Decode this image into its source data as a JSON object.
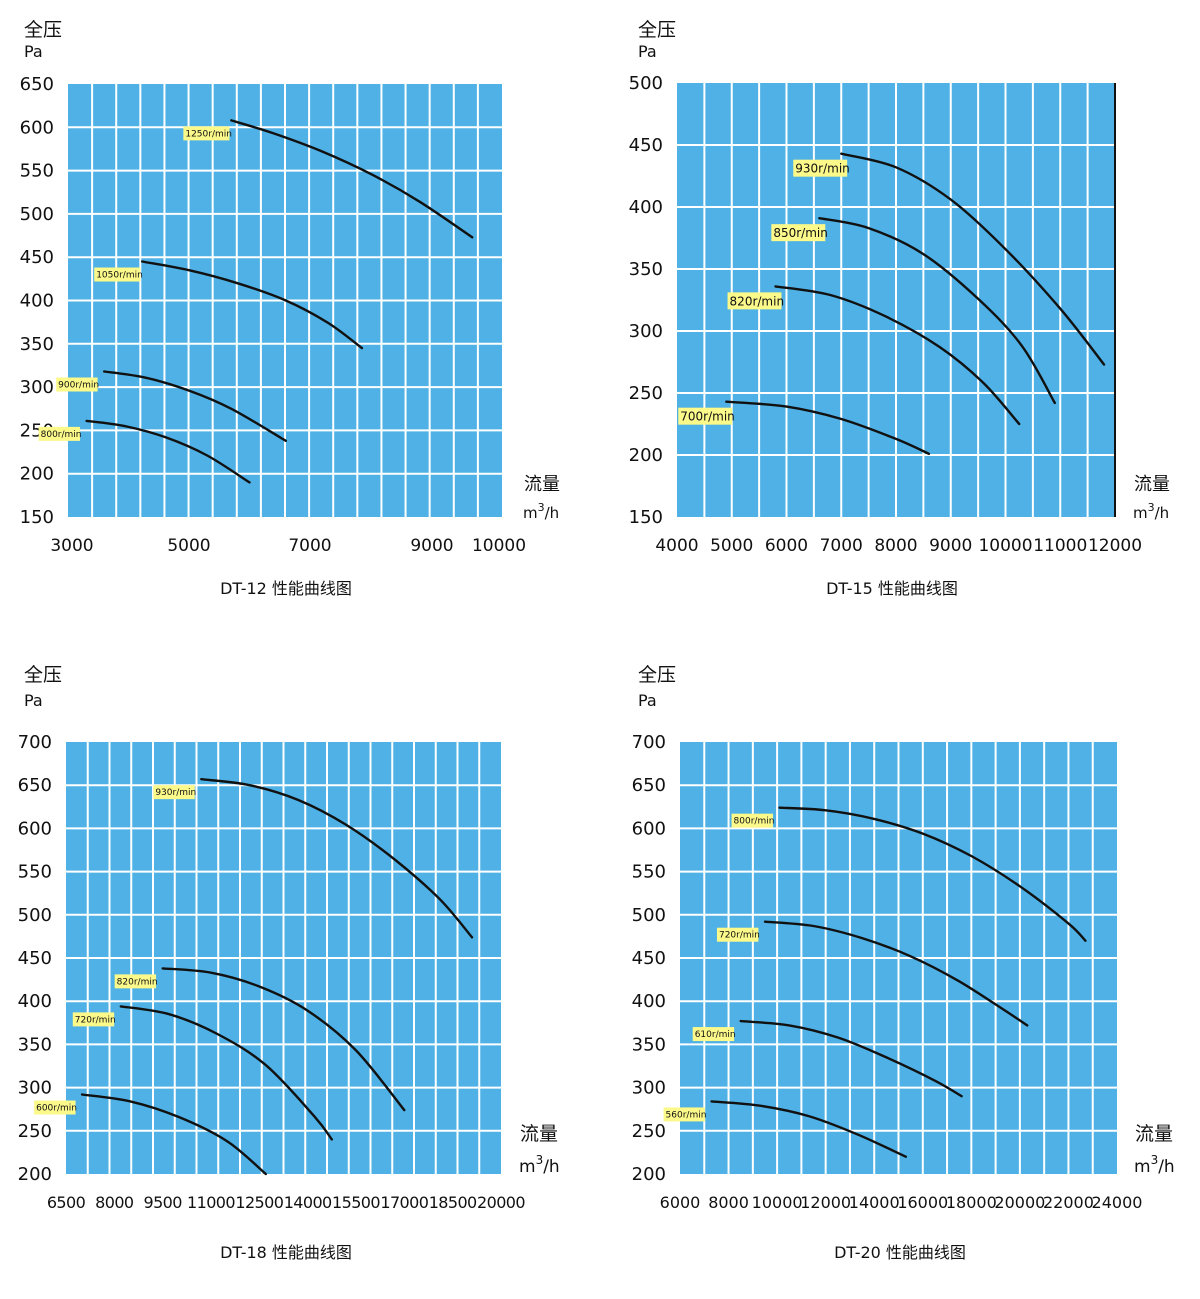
{
  "page": {
    "background": "#ffffff",
    "plot_background": "#4fb1e5",
    "grid_color": "#ffffff",
    "curve_color": "#111111",
    "label_background": "#fbf98a"
  },
  "chart_data": [
    {
      "type": "line",
      "caption": "DT-12 性能曲线图",
      "y_title": "全压",
      "y_unit": "Pa",
      "x_title": "流量",
      "x_unit": "m³/h",
      "x_unit_base": "m",
      "x_unit_sup": "3",
      "x_unit_tail": "/h",
      "x_ticks": [
        "3000",
        "5000",
        "7000",
        "9000",
        "10000"
      ],
      "y_ticks": [
        "150",
        "200",
        "250",
        "300",
        "350",
        "400",
        "450",
        "500",
        "550",
        "600",
        "650"
      ],
      "ylim": [
        150,
        650
      ],
      "grid": true,
      "series": [
        {
          "name": "1250r/min",
          "x": [
            5700,
            6400,
            7200,
            8000,
            8800,
            9600
          ],
          "y": [
            608,
            593,
            572,
            546,
            514,
            473
          ]
        },
        {
          "name": "1050r/min",
          "x": [
            4200,
            5000,
            5800,
            6600,
            7300,
            7850
          ],
          "y": [
            445,
            435,
            420,
            400,
            374,
            345
          ]
        },
        {
          "name": "900r/min",
          "x": [
            3550,
            4250,
            5000,
            5700,
            6600
          ],
          "y": [
            318,
            311,
            296,
            275,
            238
          ]
        },
        {
          "name": "800r/min",
          "x": [
            3250,
            3900,
            4600,
            5300,
            6000
          ],
          "y": [
            261,
            255,
            242,
            221,
            190
          ]
        }
      ]
    },
    {
      "type": "line",
      "caption": "DT-15 性能曲线图",
      "y_title": "全压",
      "y_unit": "Pa",
      "x_title": "流量",
      "x_unit": "m³/h",
      "x_unit_base": "m",
      "x_unit_sup": "3",
      "x_unit_tail": "/h",
      "x_ticks": [
        "4000",
        "5000",
        "6000",
        "7000",
        "8000",
        "9000",
        "10000",
        "11000",
        "12000"
      ],
      "y_ticks": [
        "150",
        "200",
        "250",
        "300",
        "350",
        "400",
        "450",
        "500"
      ],
      "xlim": [
        4000,
        12000
      ],
      "ylim": [
        150,
        500
      ],
      "grid": true,
      "series": [
        {
          "name": "930r/min",
          "x": [
            7000,
            8000,
            9000,
            10000,
            11000,
            11800
          ],
          "y": [
            443,
            432,
            406,
            366,
            318,
            273
          ]
        },
        {
          "name": "850r/min",
          "x": [
            6600,
            7500,
            8500,
            9500,
            10300,
            10900
          ],
          "y": [
            391,
            383,
            362,
            326,
            288,
            242
          ]
        },
        {
          "name": "820r/min",
          "x": [
            5800,
            6800,
            7800,
            8800,
            9600,
            10250
          ],
          "y": [
            336,
            329,
            312,
            287,
            258,
            225
          ]
        },
        {
          "name": "700r/min",
          "x": [
            4900,
            6000,
            7000,
            8000,
            8600
          ],
          "y": [
            243,
            239,
            229,
            213,
            201
          ]
        }
      ]
    },
    {
      "type": "line",
      "caption": "DT-18 性能曲线图",
      "y_title": "全压",
      "y_unit": "Pa",
      "x_title": "流量",
      "x_unit": "m³/h",
      "x_unit_base": "m",
      "x_unit_sup": "3",
      "x_unit_tail": "/h",
      "x_ticks": [
        "6500",
        "8000",
        "9500",
        "11000",
        "12500",
        "14000",
        "15500",
        "17000",
        "18500",
        "20000"
      ],
      "y_ticks": [
        "200",
        "250",
        "300",
        "350",
        "400",
        "450",
        "500",
        "550",
        "600",
        "650",
        "700"
      ],
      "ylim": [
        200,
        700
      ],
      "grid": true,
      "series": [
        {
          "name": "930r/min",
          "x": [
            10700,
            12200,
            13700,
            15200,
            16700,
            18100,
            19100
          ],
          "y": [
            657,
            650,
            633,
            604,
            564,
            518,
            474
          ]
        },
        {
          "name": "820r/min",
          "x": [
            9500,
            11000,
            12500,
            14000,
            15500,
            17000
          ],
          "y": [
            438,
            433,
            417,
            389,
            343,
            274
          ]
        },
        {
          "name": "720r/min",
          "x": [
            8200,
            9700,
            11200,
            12700,
            14200,
            14750
          ],
          "y": [
            394,
            385,
            362,
            326,
            267,
            240
          ]
        },
        {
          "name": "600r/min",
          "x": [
            7000,
            8500,
            10000,
            11500,
            12700
          ],
          "y": [
            292,
            284,
            266,
            238,
            200
          ]
        }
      ]
    },
    {
      "type": "line",
      "caption": "DT-20 性能曲线图",
      "y_title": "全压",
      "y_unit": "Pa",
      "x_title": "流量",
      "x_unit": "m³/h",
      "x_unit_base": "m",
      "x_unit_sup": "3",
      "x_unit_tail": "/h",
      "x_ticks": [
        "6000",
        "8000",
        "10000",
        "12000",
        "14000",
        "16000",
        "18000",
        "20000",
        "22000",
        "24000"
      ],
      "y_ticks": [
        "200",
        "250",
        "300",
        "350",
        "400",
        "450",
        "500",
        "550",
        "600",
        "650",
        "700"
      ],
      "xlim": [
        6000,
        24000
      ],
      "ylim": [
        200,
        700
      ],
      "grid": true,
      "series": [
        {
          "name": "800r/min",
          "x": [
            10100,
            12000,
            14000,
            16000,
            18000,
            20000,
            22000,
            22700
          ],
          "y": [
            624,
            621,
            611,
            594,
            568,
            533,
            490,
            470
          ]
        },
        {
          "name": "720r/min",
          "x": [
            9500,
            11500,
            13500,
            15500,
            17500,
            19500,
            20300
          ],
          "y": [
            492,
            487,
            473,
            452,
            423,
            387,
            372
          ]
        },
        {
          "name": "610r/min",
          "x": [
            8500,
            10500,
            12500,
            14500,
            16500,
            17600
          ],
          "y": [
            377,
            372,
            358,
            335,
            308,
            290
          ]
        },
        {
          "name": "560r/min",
          "x": [
            7300,
            9300,
            11300,
            13300,
            15300
          ],
          "y": [
            284,
            279,
            267,
            246,
            220
          ]
        }
      ]
    }
  ]
}
